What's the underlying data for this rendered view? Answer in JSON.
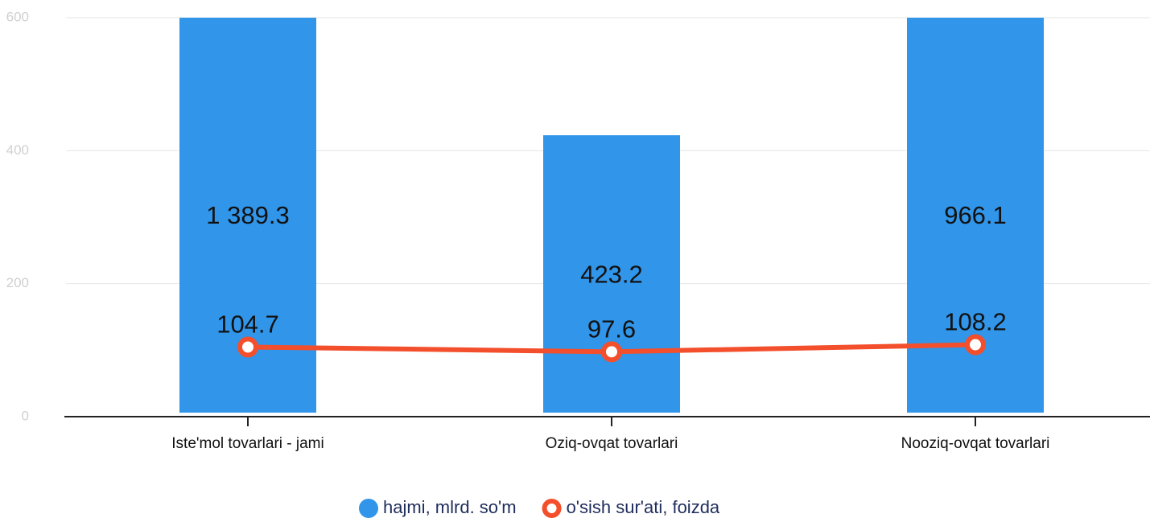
{
  "chart_data": {
    "type": "bar-line",
    "categories": [
      "Iste'mol tovarlari - jami",
      "Oziq-ovqat tovarlari",
      "Nooziq-ovqat tovarlari"
    ],
    "series": [
      {
        "name": "hajmi, mlrd. so'm",
        "type": "bar",
        "color": "#3195e9",
        "values": [
          1389.3,
          423.2,
          966.1
        ],
        "value_labels": [
          "1 389.3",
          "423.2",
          "966.1"
        ]
      },
      {
        "name": "o'sish sur'ati, foizda",
        "type": "line",
        "color": "#f34f2c",
        "values": [
          104.7,
          97.6,
          108.2
        ]
      }
    ],
    "ylim": [
      0,
      600
    ],
    "yticks": [
      0,
      200,
      400,
      600
    ],
    "grid": true,
    "legend": "bottom"
  }
}
